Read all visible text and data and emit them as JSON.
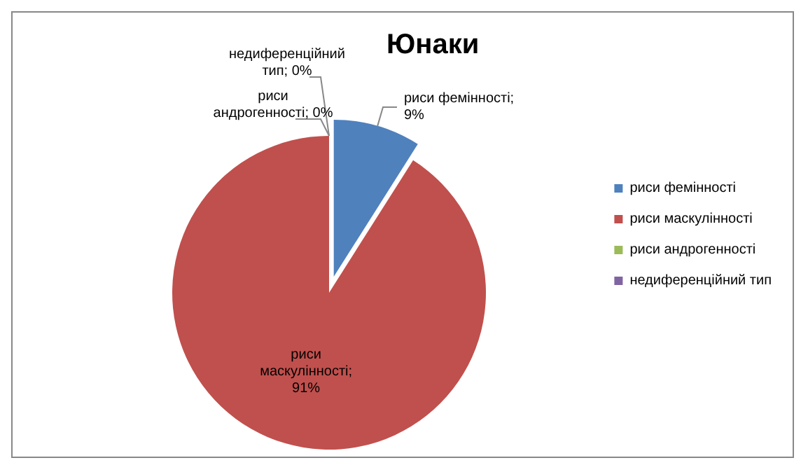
{
  "chart_data": {
    "type": "pie",
    "title": "Юнаки",
    "categories": [
      "риси фемінності",
      "риси маскулінності",
      "риси андрогенності",
      "недиференційний тип"
    ],
    "values": [
      9,
      91,
      0,
      0
    ],
    "value_labels": [
      "риси фемінності; 9%",
      "риси маскулінності; 91%",
      "риси андрогенності; 0%",
      "недиференційний тип; 0%"
    ],
    "colors": [
      "#4f81bd",
      "#c0504d",
      "#9bbb59",
      "#8064a2"
    ],
    "legend": "right"
  }
}
